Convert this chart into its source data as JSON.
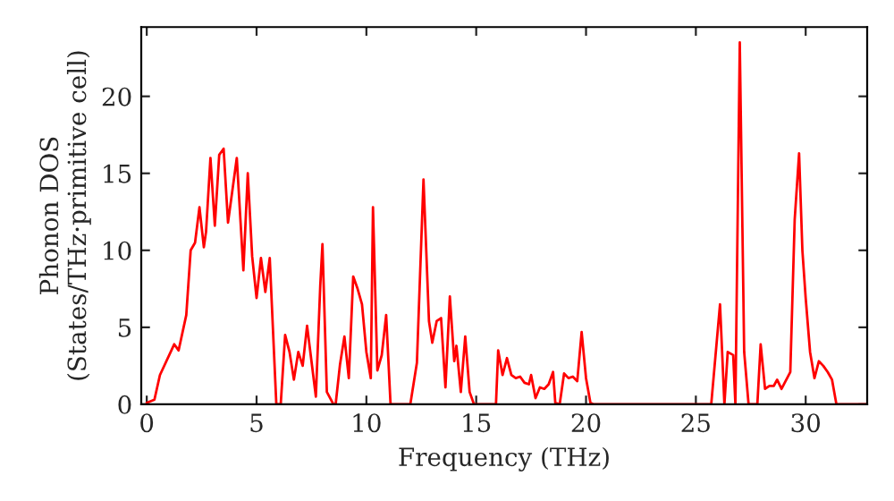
{
  "chart_data": {
    "type": "line",
    "xlabel": "Frequency (THz)",
    "ylabel": "Phonon DOS\n(States/THz·primitive cell)",
    "xlim": [
      -0.25,
      32.8
    ],
    "ylim": [
      0,
      24.5
    ],
    "xticks": [
      0,
      5,
      10,
      15,
      20,
      25,
      30
    ],
    "yticks": [
      0,
      5,
      10,
      15,
      20
    ],
    "grid": false,
    "marker": "none",
    "line_style": "solid",
    "series": [
      {
        "color": "#ff0000",
        "x": [
          0,
          0.35,
          0.6,
          1.25,
          1.45,
          1.8,
          2.0,
          2.2,
          2.4,
          2.6,
          2.7,
          2.9,
          3.1,
          3.3,
          3.5,
          3.7,
          4.1,
          4.4,
          4.6,
          4.8,
          5.0,
          5.2,
          5.4,
          5.6,
          5.9,
          6.1,
          6.3,
          6.5,
          6.7,
          6.9,
          7.1,
          7.3,
          7.5,
          7.7,
          7.9,
          8.0,
          8.2,
          8.5,
          8.6,
          8.8,
          9.0,
          9.2,
          9.4,
          9.6,
          9.8,
          10.0,
          10.2,
          10.3,
          10.5,
          10.7,
          10.9,
          11.1,
          12.0,
          12.3,
          12.6,
          12.85,
          13.0,
          13.2,
          13.4,
          13.6,
          13.8,
          14.0,
          14.1,
          14.3,
          14.5,
          14.7,
          14.9,
          15.9,
          16.0,
          16.2,
          16.4,
          16.6,
          16.8,
          17.0,
          17.2,
          17.4,
          17.5,
          17.7,
          17.9,
          18.1,
          18.3,
          18.5,
          18.6,
          18.8,
          19.0,
          19.2,
          19.4,
          19.6,
          19.8,
          20.0,
          20.2,
          20.35,
          25.7,
          26.1,
          26.3,
          26.45,
          26.7,
          26.8,
          27.0,
          27.2,
          27.4,
          27.8,
          27.95,
          28.15,
          28.35,
          28.55,
          28.7,
          28.9,
          29.3,
          29.5,
          29.7,
          29.85,
          30.0,
          30.2,
          30.4,
          30.6,
          30.8,
          31.0,
          31.2,
          31.4,
          32.8
        ],
        "values": [
          0.1,
          0.3,
          1.9,
          3.9,
          3.5,
          5.8,
          10,
          10.5,
          12.8,
          10.2,
          11.2,
          16,
          11.6,
          16.2,
          16.6,
          11.8,
          16,
          8.7,
          15,
          9.6,
          6.9,
          9.5,
          7.3,
          9.5,
          0,
          0,
          4.5,
          3.4,
          1.6,
          3.4,
          2.5,
          5.1,
          2.8,
          0.5,
          7.7,
          10.4,
          0.8,
          0,
          0,
          2.6,
          4.4,
          1.7,
          8.3,
          7.5,
          6.5,
          3.4,
          1.7,
          12.8,
          2.2,
          3.2,
          5.8,
          0,
          0,
          2.7,
          14.6,
          5.4,
          4.0,
          5.4,
          5.6,
          1.1,
          7.0,
          2.8,
          3.8,
          0.8,
          4.4,
          0.8,
          0,
          0,
          3.5,
          1.9,
          3.0,
          1.9,
          1.7,
          1.8,
          1.4,
          1.3,
          1.9,
          0.4,
          1.1,
          1.0,
          1.3,
          2.1,
          0.1,
          0,
          2.0,
          1.7,
          1.8,
          1.5,
          4.7,
          1.7,
          0.1,
          0,
          0,
          6.5,
          0,
          3.4,
          3.2,
          0,
          23.5,
          3.4,
          0,
          0,
          3.9,
          1.0,
          1.2,
          1.2,
          1.6,
          1.0,
          2.1,
          12.0,
          16.3,
          10,
          6.9,
          3.4,
          1.7,
          2.8,
          2.5,
          2.1,
          1.6,
          0,
          0
        ]
      }
    ]
  }
}
